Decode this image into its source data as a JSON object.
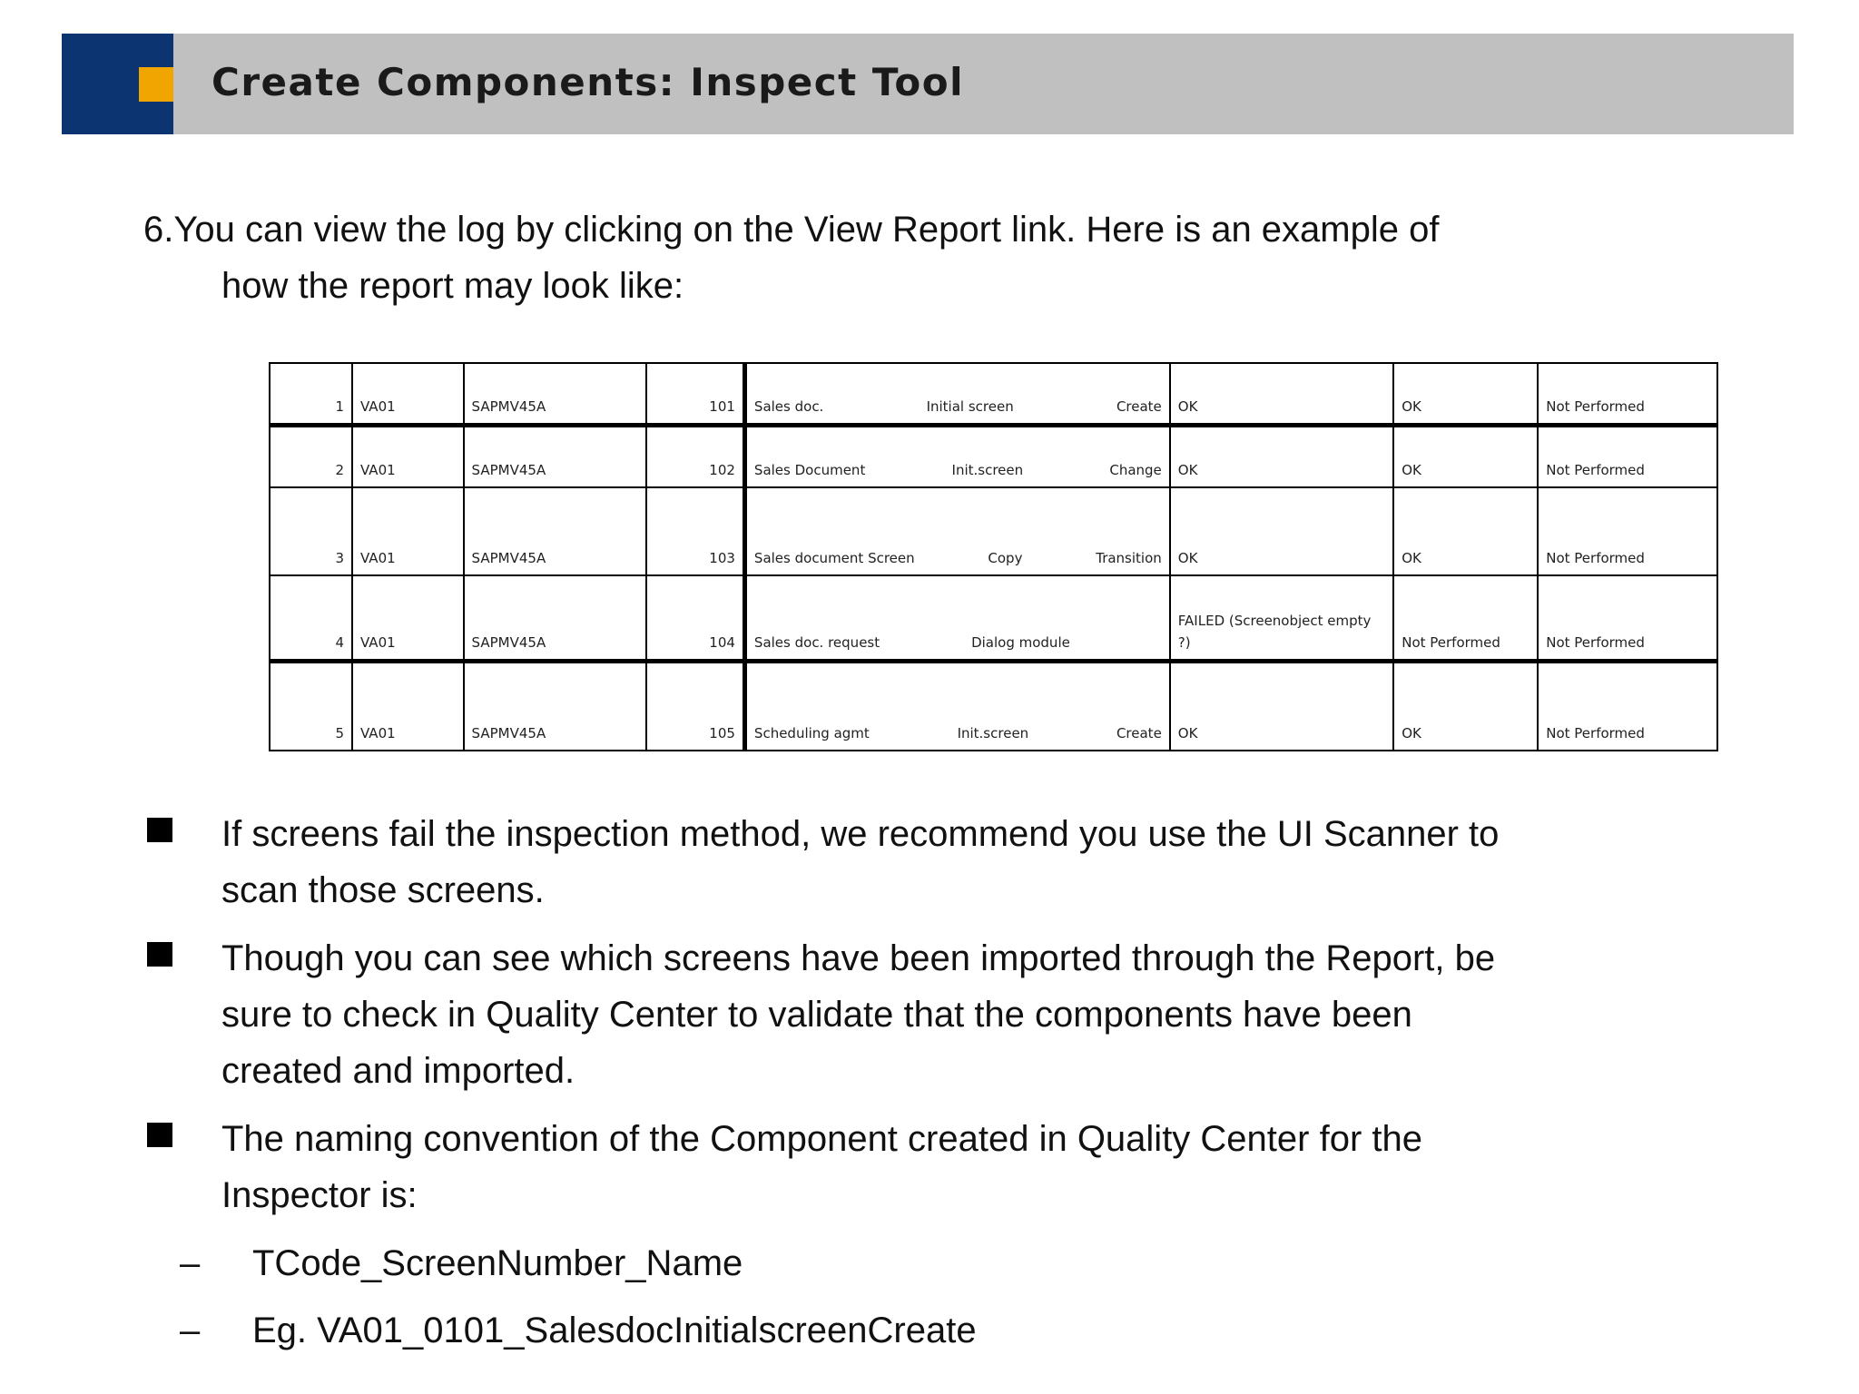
{
  "header": {
    "title": "Create Components: Inspect Tool",
    "colors": {
      "blue": "#0b3470",
      "orange": "#f0a500",
      "bar": "#c0c0c0"
    }
  },
  "intro": {
    "line1": "6.You can view the log by  clicking on the View Report link.  Here is an example of",
    "line2": "how the report may look like:"
  },
  "report_table": {
    "rows": [
      {
        "no": "1",
        "tcode": "VA01",
        "program": "SAPMV45A",
        "screen": "101",
        "desc": [
          "Sales doc.",
          "Initial screen",
          "Create"
        ],
        "status1": "OK",
        "status2": "OK",
        "status3": "Not Performed"
      },
      {
        "no": "2",
        "tcode": "VA01",
        "program": "SAPMV45A",
        "screen": "102",
        "desc": [
          "Sales Document",
          "Init.screen",
          "Change"
        ],
        "status1": "OK",
        "status2": "OK",
        "status3": "Not Performed"
      },
      {
        "no": "3",
        "tcode": "VA01",
        "program": "SAPMV45A",
        "screen": "103",
        "desc": [
          "Sales document Screen",
          "Copy",
          "Transition"
        ],
        "status1": "OK",
        "status2": "OK",
        "status3": "Not Performed"
      },
      {
        "no": "4",
        "tcode": "VA01",
        "program": "SAPMV45A",
        "screen": "104",
        "desc": [
          "Sales doc. request",
          "Dialog module",
          ""
        ],
        "status1": "FAILED (Screenobject empty ?)",
        "status2": "Not Performed",
        "status3": "Not Performed"
      },
      {
        "no": "5",
        "tcode": "VA01",
        "program": "SAPMV45A",
        "screen": "105",
        "desc": [
          "Scheduling agmt",
          "Init.screen",
          "Create"
        ],
        "status1": "OK",
        "status2": "OK",
        "status3": "Not Performed"
      }
    ]
  },
  "bullets": [
    {
      "lines": [
        "If screens fail the inspection method, we recommend you use the UI Scanner to",
        "scan those screens."
      ]
    },
    {
      "lines": [
        "Though you can see which screens have been imported through the Report, be",
        "sure to check in Quality Center to validate that the components have been",
        "created and imported."
      ]
    },
    {
      "lines": [
        "The naming convention of the Component created in Quality Center for the",
        "Inspector is:"
      ]
    }
  ],
  "subbullets": [
    {
      "dash": "–",
      "text": "TCode_ScreenNumber_Name"
    },
    {
      "dash": "–",
      "text": "Eg. VA01_0101_SalesdocInitialscreenCreate"
    }
  ]
}
